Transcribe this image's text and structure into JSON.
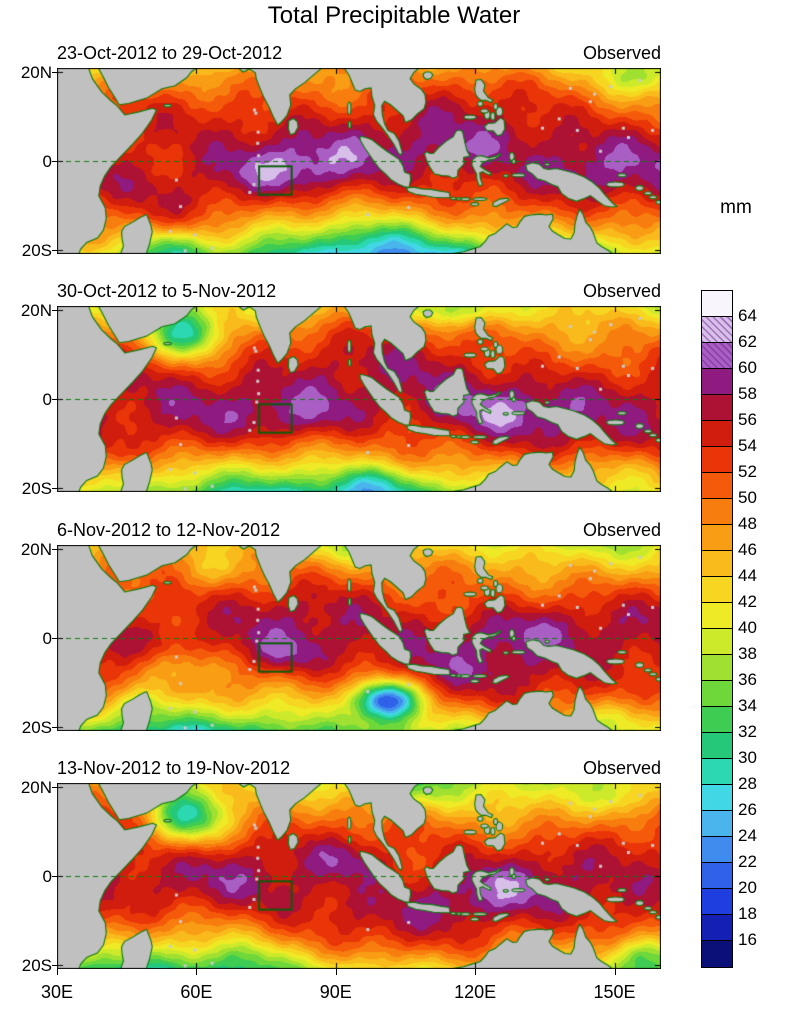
{
  "title": "Total Precipitable Water",
  "chart_data": {
    "type": "heatmap",
    "title": "Total Precipitable Water",
    "units": "mm",
    "panels": [
      {
        "label": "23-Oct-2012 to 29-Oct-2012",
        "source": "Observed",
        "summary": "Very high TPW (54-60 mm) across the equatorial Indian Ocean and Maritime Continent; drier air (28-38 mm) poleward of 15S with minima near 55E,19S."
      },
      {
        "label": "30-Oct-2012 to 5-Nov-2012",
        "source": "Observed",
        "summary": "Moist equatorial band persists (52-58 mm); dry intrusion (26-34 mm) over the western Arabian Sea near 58E,15N."
      },
      {
        "label": "6-Nov-2012 to 12-Nov-2012",
        "source": "Observed",
        "summary": "Pronounced dry anomaly (16-24 mm) near 100E,14S; high TPW (54-60 mm) over the Maritime Continent; drier western Indian Ocean south of the equator."
      },
      {
        "label": "13-Nov-2012 to 19-Nov-2012",
        "source": "Observed",
        "summary": "Dry patch (26-32 mm) in the central Arabian Sea; moist band (50-58 mm) along and just south of the equator from 70E to 150E."
      }
    ],
    "x_axis": {
      "label": "longitude",
      "ticks": [
        "30E",
        "60E",
        "90E",
        "120E",
        "150E"
      ],
      "tick_lons": [
        30,
        60,
        90,
        120,
        150
      ],
      "range": [
        30,
        160
      ]
    },
    "y_axis": {
      "label": "latitude",
      "ticks": [
        "20N",
        "0",
        "20S"
      ],
      "tick_lats": [
        20,
        0,
        -20
      ],
      "range": [
        21,
        -21
      ]
    },
    "colorbar": {
      "unit": "mm",
      "levels": [
        16,
        18,
        20,
        22,
        24,
        26,
        28,
        30,
        32,
        34,
        36,
        38,
        40,
        42,
        44,
        46,
        48,
        50,
        52,
        54,
        56,
        58,
        60,
        62,
        64
      ],
      "colors_low_to_high": [
        "#0a1078",
        "#1420b4",
        "#1e3ee0",
        "#2f62e8",
        "#3f8cee",
        "#4ab4ec",
        "#41d7e4",
        "#2cd8b2",
        "#24c878",
        "#3ecc52",
        "#6ed83a",
        "#a0e030",
        "#cdea2a",
        "#eeeb26",
        "#f6d621",
        "#f9ba1b",
        "#f99d15",
        "#f87d0f",
        "#f5590a",
        "#e93507",
        "#d11d0d",
        "#ad1134",
        "#8f1a80",
        "#a95ec4",
        "#d7bfe9",
        "#f9f5fd"
      ],
      "hatched_ranges": [
        [
          60,
          62
        ],
        [
          62,
          64
        ]
      ]
    },
    "map": {
      "land_color": "#c0c0c0",
      "coast_color": "#0e7a0e",
      "equator_line": "dashed-green",
      "study_box": {
        "lon": [
          73.5,
          80.5
        ],
        "lat": [
          -7.6,
          -1.2
        ]
      }
    }
  }
}
